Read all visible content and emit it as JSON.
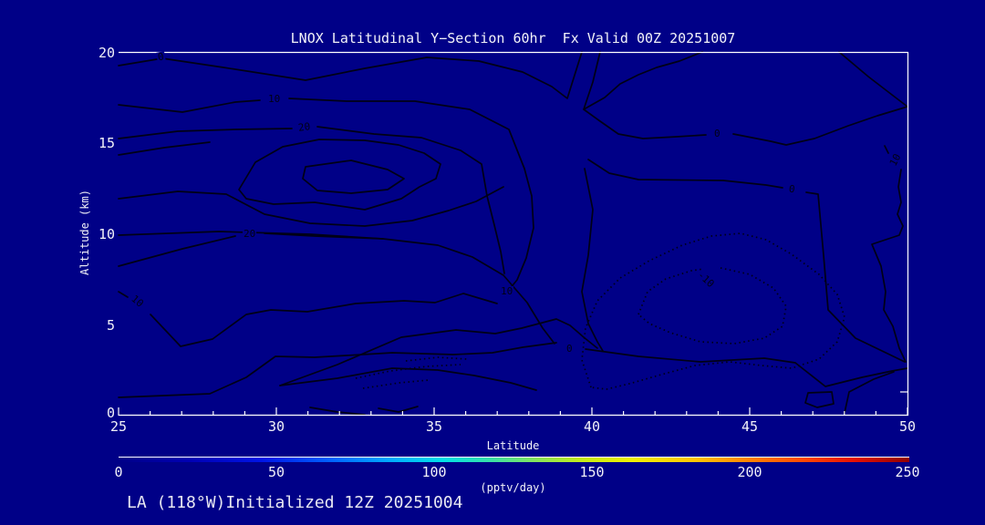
{
  "title": "LNOX Latitudinal Y−Section 60hr  Fx Valid 00Z 20251007",
  "footer": "LA (118°W)Initialized 12Z 20251004",
  "colors": {
    "background": "#000087",
    "frame": "#ffffff",
    "contour": "#000016",
    "text": "#ffffff"
  },
  "axes": {
    "y": {
      "label": "Altitude (km)",
      "ticks": [
        "20",
        "15",
        "10",
        "5",
        "0"
      ]
    },
    "x": {
      "label": "Latitude",
      "ticks": [
        "25",
        "30",
        "35",
        "40",
        "45",
        "50"
      ]
    }
  },
  "colorbar": {
    "label": "(pptv/day)",
    "ticks": [
      "0",
      "50",
      "100",
      "150",
      "200",
      "250"
    ]
  },
  "contour_labels": [
    {
      "text": "0"
    },
    {
      "text": "10"
    },
    {
      "text": "20"
    },
    {
      "text": "20"
    },
    {
      "text": "10"
    },
    {
      "text": "10"
    },
    {
      "text": "0"
    },
    {
      "text": "0"
    },
    {
      "text": "10"
    },
    {
      "text": "0"
    },
    {
      "text": "-10"
    }
  ],
  "chart_data": {
    "type": "contour",
    "title": "LNOX Latitudinal Y−Section 60hr  Fx Valid 00Z 20251007",
    "subtitle": "LA (118°W)Initialized 12Z 20251004",
    "xlabel": "Latitude",
    "ylabel": "Altitude (km)",
    "xlim": [
      25,
      50
    ],
    "ylim": [
      0,
      20
    ],
    "x_ticks": [
      25,
      30,
      35,
      40,
      45,
      50
    ],
    "x_minor_tick_interval": 1,
    "y_ticks": [
      0,
      5,
      10,
      15,
      20
    ],
    "units": "pptv/day",
    "line_style": {
      "positive": "solid",
      "negative": "dotted"
    },
    "labeled_levels": [
      -10,
      0,
      10,
      20
    ],
    "contour_labels": [
      {
        "value": 0,
        "lat": 26.4,
        "alt_km": 19.7
      },
      {
        "value": 10,
        "lat": 29.9,
        "alt_km": 17.4
      },
      {
        "value": 20,
        "lat": 30.9,
        "alt_km": 15.8
      },
      {
        "value": 20,
        "lat": 29.1,
        "alt_km": 9.9
      },
      {
        "value": 10,
        "lat": 25.6,
        "alt_km": 6.2
      },
      {
        "value": 10,
        "lat": 37.3,
        "alt_km": 6.8
      },
      {
        "value": 0,
        "lat": 44.0,
        "alt_km": 15.5
      },
      {
        "value": 0,
        "lat": 46.4,
        "alt_km": 12.4
      },
      {
        "value": 10,
        "lat": 49.6,
        "alt_km": 14.0
      },
      {
        "value": 0,
        "lat": 39.3,
        "alt_km": 3.6
      },
      {
        "value": -10,
        "lat": 43.7,
        "alt_km": 7.4
      }
    ],
    "features": [
      "closed positive maximum (>30) centered near lat 30, 14 km",
      "dotted negative region (min < -10) centered near lat 43.5, 5-8 km",
      "zero line hugging tropopause near 19 km sloping down toward 15 km at high latitude"
    ],
    "colorbar": {
      "label": "(pptv/day)",
      "min": 0,
      "max": 250,
      "ticks": [
        0,
        50,
        100,
        150,
        200,
        250
      ],
      "palette": "rainbow (navy-blue-cyan-green-yellow-orange-red-darkred)"
    }
  }
}
